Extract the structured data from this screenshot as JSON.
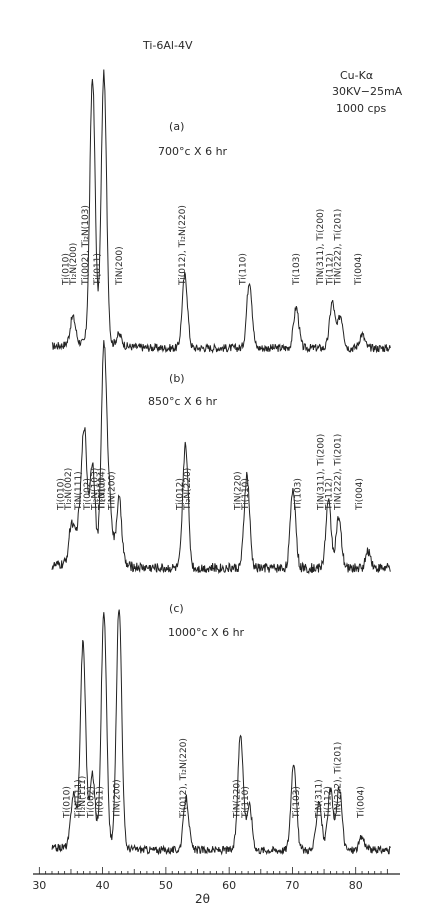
{
  "chart_data": {
    "type": "line",
    "title": "Ti-6Al-4V",
    "conditions": [
      "Cu-Kα",
      "30KV−25mA",
      "1000 cps"
    ],
    "xlabel": "2θ",
    "xlim": [
      29,
      87
    ],
    "xticks": [
      30,
      40,
      50,
      60,
      70,
      80
    ],
    "grid": false,
    "series": [
      {
        "name": "(a)",
        "condition": "700°c X 6 hr",
        "peaks": [
          {
            "x": 35.3,
            "h": 0.1
          },
          {
            "x": 38.4,
            "h": 0.98
          },
          {
            "x": 40.2,
            "h": 1.0
          },
          {
            "x": 42.6,
            "h": 0.04
          },
          {
            "x": 53.0,
            "h": 0.27
          },
          {
            "x": 63.2,
            "h": 0.25
          },
          {
            "x": 70.6,
            "h": 0.15
          },
          {
            "x": 76.3,
            "h": 0.17
          },
          {
            "x": 77.6,
            "h": 0.12
          },
          {
            "x": 81.0,
            "h": 0.05
          }
        ],
        "labels": [
          {
            "x": 34.6,
            "text": "Ti(010)"
          },
          {
            "x": 35.8,
            "text": "Ti₂N(200)"
          },
          {
            "x": 37.7,
            "text": "Ti(002), Ti₂N(103)"
          },
          {
            "x": 39.6,
            "text": "Ti(011)"
          },
          {
            "x": 43.1,
            "text": "TiN(200)"
          },
          {
            "x": 53.0,
            "text": "Ti(012), Ti₂N(220)"
          },
          {
            "x": 62.6,
            "text": "Ti(110)"
          },
          {
            "x": 71.0,
            "text": "Ti(103)"
          },
          {
            "x": 74.8,
            "text": "TiN(311), Ti(200)"
          },
          {
            "x": 76.3,
            "text": "Ti(112)"
          },
          {
            "x": 77.6,
            "text": "TiN(222), Ti(201)"
          },
          {
            "x": 80.8,
            "text": "Ti(004)"
          }
        ]
      },
      {
        "name": "(b)",
        "condition": "850°c X 6 hr",
        "peaks": [
          {
            "x": 35.1,
            "h": 0.12
          },
          {
            "x": 36.2,
            "h": 0.1
          },
          {
            "x": 37.1,
            "h": 0.4
          },
          {
            "x": 38.4,
            "h": 0.3
          },
          {
            "x": 40.2,
            "h": 0.65
          },
          {
            "x": 41.1,
            "h": 0.18
          },
          {
            "x": 42.6,
            "h": 0.2
          },
          {
            "x": 53.1,
            "h": 0.38
          },
          {
            "x": 62.8,
            "h": 0.28
          },
          {
            "x": 70.1,
            "h": 0.24
          },
          {
            "x": 75.7,
            "h": 0.2
          },
          {
            "x": 77.3,
            "h": 0.15
          },
          {
            "x": 82.0,
            "h": 0.05
          }
        ],
        "labels": [
          {
            "x": 33.8,
            "text": "Ti(010)"
          },
          {
            "x": 35.0,
            "text": "Ti₂N(002)"
          },
          {
            "x": 36.6,
            "text": "TiN(111)"
          },
          {
            "x": 38.0,
            "text": "Ti(002)"
          },
          {
            "x": 39.2,
            "text": "Ti₂N(103)"
          },
          {
            "x": 40.3,
            "text": "Ti(011)"
          },
          {
            "x": 40.3,
            "text": "Ti₂N(004)"
          },
          {
            "x": 41.9,
            "text": "TiN(200)"
          },
          {
            "x": 52.6,
            "text": "Ti(012)"
          },
          {
            "x": 53.8,
            "text": "Ti₂N(220)"
          },
          {
            "x": 61.8,
            "text": "TiN(220)"
          },
          {
            "x": 63.0,
            "text": "Ti(110)"
          },
          {
            "x": 71.3,
            "text": "Ti(103)"
          },
          {
            "x": 74.9,
            "text": "TiN(311), Ti(200)"
          },
          {
            "x": 76.2,
            "text": "Ti(112)"
          },
          {
            "x": 77.6,
            "text": "TiN(222), Ti(201)"
          },
          {
            "x": 81.0,
            "text": "Ti(004)"
          }
        ]
      },
      {
        "name": "(c)",
        "condition": "1000°c X 6 hr",
        "peaks": [
          {
            "x": 35.4,
            "h": 0.2
          },
          {
            "x": 36.9,
            "h": 0.78
          },
          {
            "x": 38.4,
            "h": 0.27
          },
          {
            "x": 40.2,
            "h": 0.9
          },
          {
            "x": 42.6,
            "h": 0.93
          },
          {
            "x": 53.2,
            "h": 0.2
          },
          {
            "x": 61.8,
            "h": 0.45
          },
          {
            "x": 63.2,
            "h": 0.17
          },
          {
            "x": 70.2,
            "h": 0.34
          },
          {
            "x": 74.2,
            "h": 0.19
          },
          {
            "x": 76.0,
            "h": 0.23
          },
          {
            "x": 77.4,
            "h": 0.24
          },
          {
            "x": 81.0,
            "h": 0.05
          }
        ],
        "labels": [
          {
            "x": 34.8,
            "text": "Ti(010)"
          },
          {
            "x": 36.6,
            "text": "TiN(111)"
          },
          {
            "x": 37.2,
            "text": "Ti₂N(111)"
          },
          {
            "x": 38.6,
            "text": "Ti(002)"
          },
          {
            "x": 40.0,
            "text": "Ti(011)"
          },
          {
            "x": 42.7,
            "text": "TiN(200)"
          },
          {
            "x": 53.2,
            "text": "Ti(012), Ti₂N(220)"
          },
          {
            "x": 61.6,
            "text": "TiN(220)"
          },
          {
            "x": 63.0,
            "text": "Ti(110)"
          },
          {
            "x": 71.0,
            "text": "Ti(103)"
          },
          {
            "x": 74.6,
            "text": "TiN(311)"
          },
          {
            "x": 76.0,
            "text": "Ti(112)"
          },
          {
            "x": 77.6,
            "text": "TiN(222), Ti(201)"
          },
          {
            "x": 81.2,
            "text": "Ti(004)"
          }
        ]
      }
    ]
  }
}
